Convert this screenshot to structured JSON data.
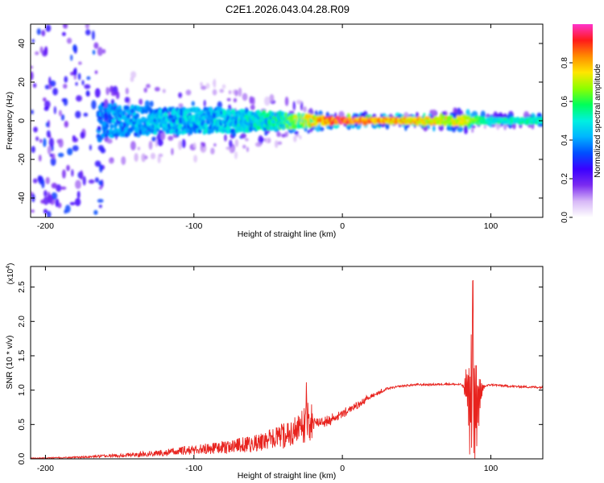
{
  "title": "C2E1.2026.043.04.28.R09",
  "colors": {
    "snr_line": "#e8231e",
    "frame": "#000000"
  },
  "chart_data": [
    {
      "type": "heatmap",
      "title": "C2E1.2026.043.04.28.R09",
      "xlabel": "Height of straight line (km)",
      "ylabel": "Frequency (Hz)",
      "xlim": [
        -210,
        135
      ],
      "ylim": [
        -50,
        50
      ],
      "x_ticks": [
        -200,
        -100,
        0,
        100
      ],
      "y_ticks": [
        40,
        20,
        0,
        -20,
        -40
      ],
      "colorbar": {
        "label": "Normalized spectral amplitude",
        "range": [
          0,
          1
        ],
        "ticks": [
          "0.0",
          "0.2",
          "0.4",
          "0.6",
          "0.8"
        ],
        "colormap": [
          "#ffffff",
          "#d7b8f7",
          "#7b2cf0",
          "#3a00ff",
          "#0050ff",
          "#00b4ff",
          "#00f0e0",
          "#00ff5a",
          "#8cff00",
          "#ffe600",
          "#ff8c00",
          "#ff1a1a",
          "#ff33cc"
        ]
      },
      "description_ridge": [
        {
          "x": -200,
          "band_hz": 50,
          "peak": 0.25
        },
        {
          "x": -160,
          "band_hz": 14,
          "peak": 0.4
        },
        {
          "x": -120,
          "band_hz": 10,
          "peak": 0.45
        },
        {
          "x": -80,
          "band_hz": 10,
          "peak": 0.45
        },
        {
          "x": -40,
          "band_hz": 6,
          "peak": 0.55
        },
        {
          "x": -10,
          "band_hz": 3,
          "peak": 0.85
        },
        {
          "x": 0,
          "band_hz": 2,
          "peak": 0.9
        },
        {
          "x": 40,
          "band_hz": 2,
          "peak": 0.8
        },
        {
          "x": 85,
          "band_hz": 4,
          "peak": 0.7
        },
        {
          "x": 100,
          "band_hz": 2,
          "peak": 0.5
        },
        {
          "x": 135,
          "band_hz": 2,
          "peak": 0.55
        }
      ]
    },
    {
      "type": "line",
      "xlabel": "Height of straight line (km)",
      "ylabel": "SNR (10 * v/v)",
      "exponent_label": "(x10",
      "exponent_power": "4",
      "exponent_close": ")",
      "xlim": [
        -210,
        135
      ],
      "ylim": [
        0,
        2.8
      ],
      "x_ticks": [
        -200,
        -100,
        0,
        100
      ],
      "y_ticks": [
        "0.0",
        "0.5",
        "1.0",
        "1.5",
        "2.0",
        "2.5"
      ],
      "series": [
        {
          "name": "SNR",
          "x": [
            -210,
            -180,
            -160,
            -140,
            -120,
            -100,
            -80,
            -60,
            -50,
            -40,
            -30,
            -25,
            -20,
            -10,
            0,
            10,
            20,
            30,
            40,
            50,
            60,
            70,
            80,
            84,
            86,
            88,
            90,
            92,
            95,
            100,
            110,
            120,
            135
          ],
          "y": [
            0.01,
            0.02,
            0.04,
            0.06,
            0.09,
            0.13,
            0.17,
            0.22,
            0.27,
            0.33,
            0.42,
            0.5,
            0.52,
            0.55,
            0.65,
            0.78,
            0.92,
            1.02,
            1.06,
            1.08,
            1.08,
            1.09,
            1.08,
            1.0,
            0.8,
            0.9,
            0.7,
            0.9,
            1.05,
            1.08,
            1.06,
            1.05,
            1.04
          ]
        }
      ]
    }
  ]
}
